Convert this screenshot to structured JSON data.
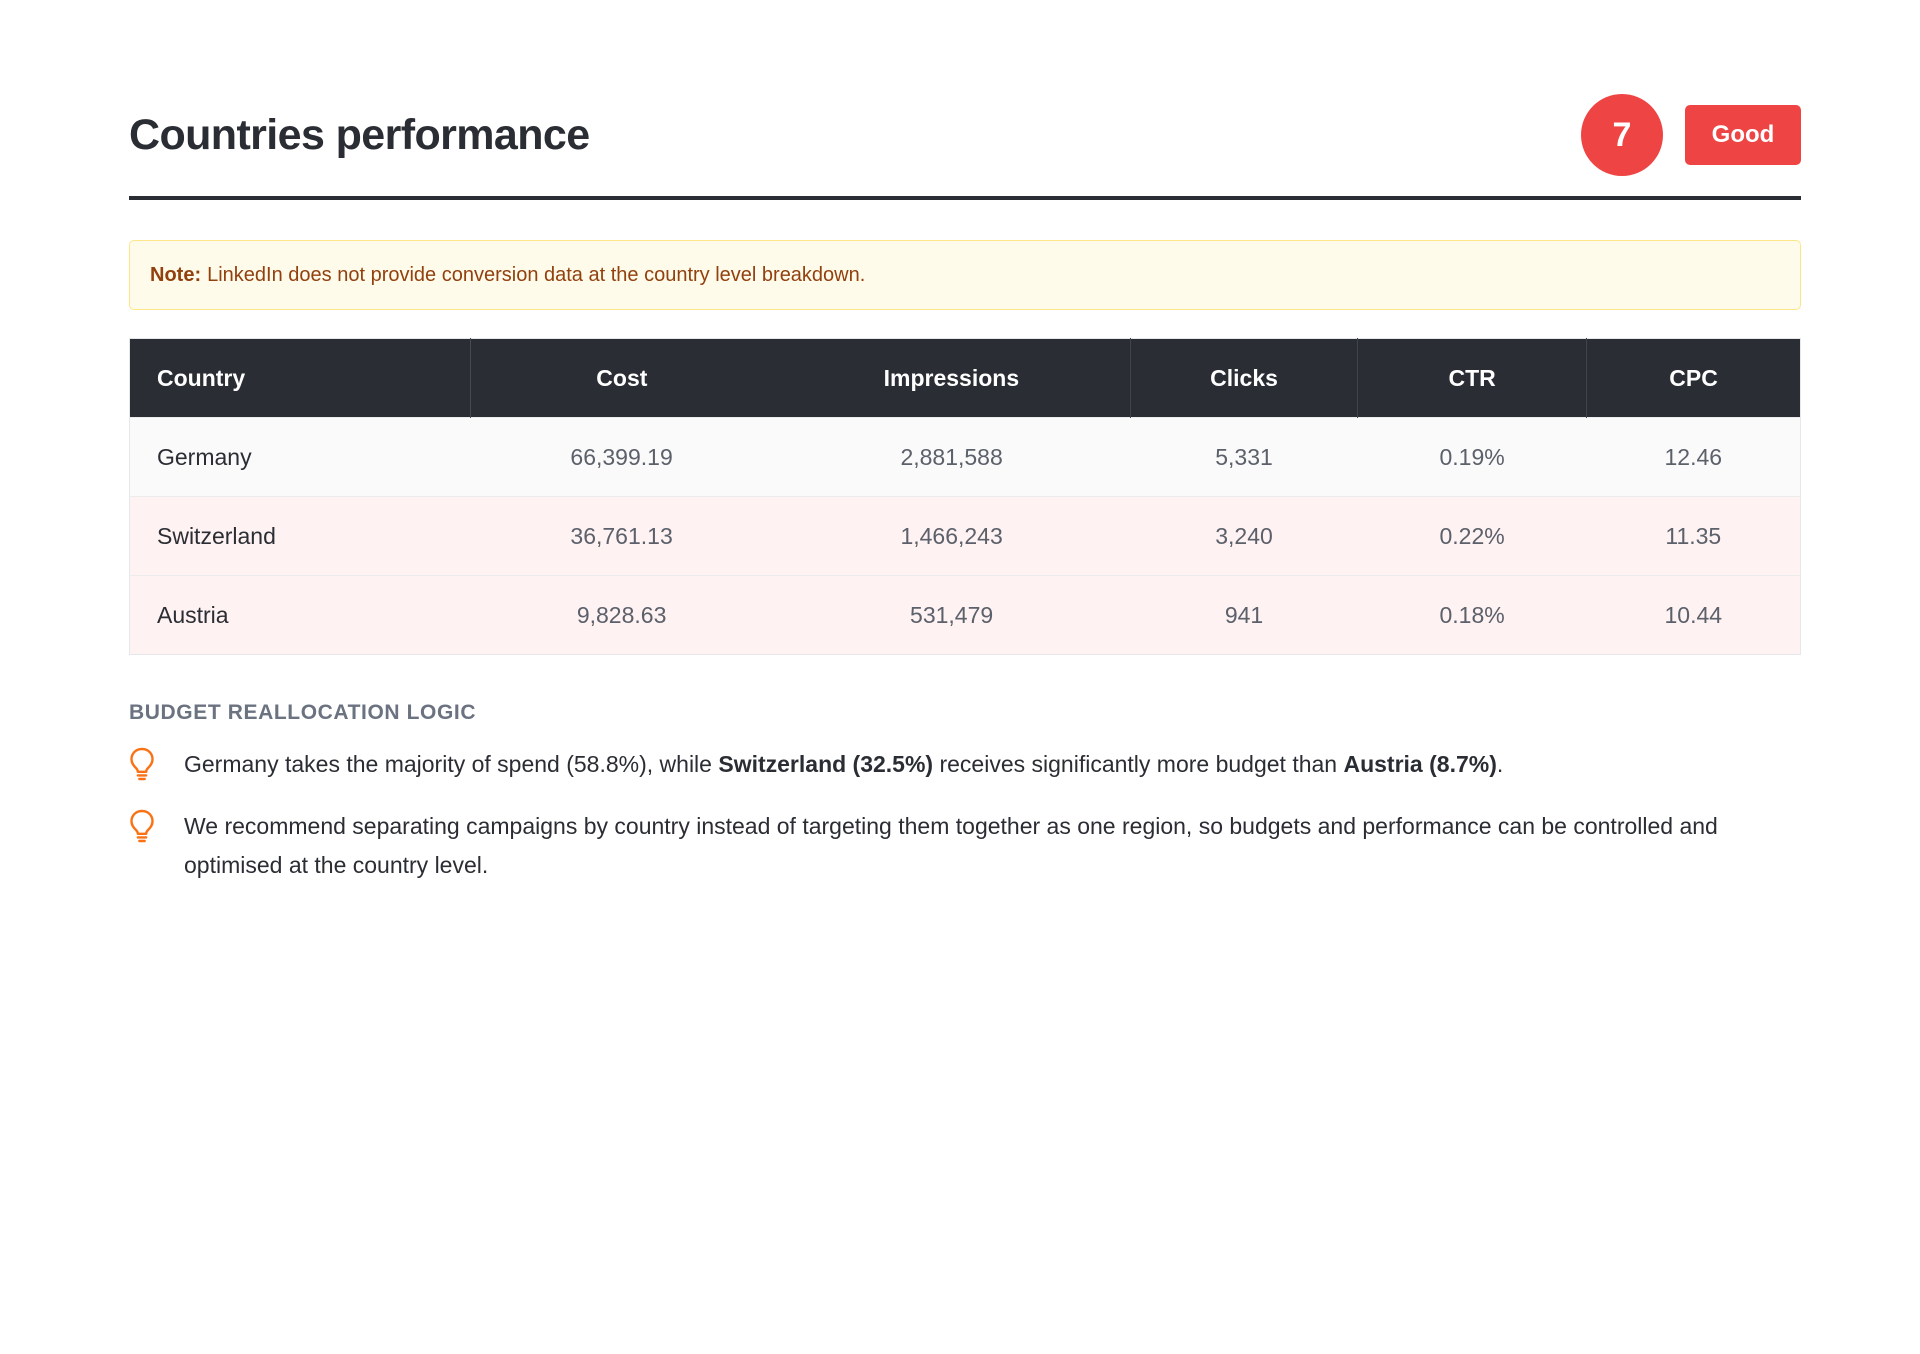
{
  "header": {
    "title": "Countries performance",
    "score": "7",
    "status": "Good"
  },
  "colors": {
    "accent": "#ef4444",
    "dark": "#2a2d33",
    "note_bg": "#fffbeb",
    "note_text": "#92400e",
    "icon": "#f97316"
  },
  "note": {
    "label": "Note:",
    "text": "LinkedIn does not provide conversion data at the country level breakdown."
  },
  "table": {
    "headers": [
      "Country",
      "Cost",
      "Impressions",
      "Clicks",
      "CTR",
      "CPC"
    ],
    "rows": [
      [
        "Germany",
        "66,399.19",
        "2,881,588",
        "5,331",
        "0.19%",
        "12.46"
      ],
      [
        "Switzerland",
        "36,761.13",
        "1,466,243",
        "3,240",
        "0.22%",
        "11.35"
      ],
      [
        "Austria",
        "9,828.63",
        "531,479",
        "941",
        "0.18%",
        "10.44"
      ]
    ]
  },
  "budget": {
    "heading": "BUDGET REALLOCATION LOGIC",
    "insights": [
      {
        "icon": "lightbulb-icon",
        "text1": "Germany takes the majority of spend (58.8%), while ",
        "bold1": "Switzerland (32.5%)",
        "text2": " receives significantly more budget than ",
        "bold2": "Austria (8.7%)",
        "text3": "."
      },
      {
        "icon": "lightbulb-icon",
        "text": "We recommend separating campaigns by country instead of targeting them together as one region, so budgets and performance can be controlled and optimised at the country level."
      }
    ]
  }
}
